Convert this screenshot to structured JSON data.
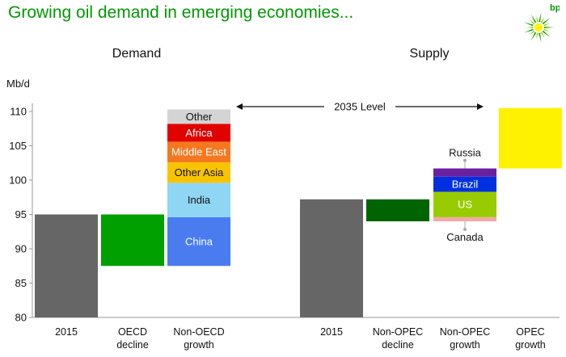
{
  "title": "Growing oil demand in emerging economies...",
  "logo_text": "bp",
  "colors": {
    "title": "#009900",
    "grey": "#666666",
    "green": "#00a000",
    "dark_green": "#006400",
    "china": "#4a7cf0",
    "india": "#8fd6f4",
    "other_asia": "#f8c400",
    "middle_east": "#f47820",
    "africa": "#e00000",
    "other": "#d4d4d4",
    "russia": "#6a1fa0",
    "brazil": "#0030e0",
    "us": "#99cc00",
    "canada": "#f4a8a8",
    "opec": "#fff200"
  },
  "chart_data": {
    "type": "bar",
    "subtype": "waterfall",
    "ylabel": "Mb/d",
    "ylim": [
      80,
      110
    ],
    "yticks": [
      80,
      85,
      90,
      95,
      100,
      105,
      110
    ],
    "grid": false,
    "annotation": "2035 Level",
    "panels": [
      {
        "name": "Demand",
        "bars": [
          {
            "category": "2015",
            "segments": [
              {
                "from": 80,
                "to": 95,
                "color": "grey"
              }
            ]
          },
          {
            "category": "OECD decline",
            "line1": "OECD",
            "line2": "decline",
            "segments": [
              {
                "from": 87.5,
                "to": 95,
                "color": "green"
              }
            ]
          },
          {
            "category": "Non-OECD growth",
            "line1": "Non-OECD",
            "line2": "growth",
            "segments": [
              {
                "label": "China",
                "from": 87.5,
                "to": 94.6,
                "color": "china",
                "text_color": "#ffffff"
              },
              {
                "label": "India",
                "from": 94.6,
                "to": 99.6,
                "color": "india",
                "text_color": "#111111"
              },
              {
                "label": "Other Asia",
                "from": 99.6,
                "to": 102.6,
                "color": "other_asia",
                "text_color": "#111111"
              },
              {
                "label": "Middle East",
                "from": 102.6,
                "to": 105.6,
                "color": "middle_east",
                "text_color": "#ffffff"
              },
              {
                "label": "Africa",
                "from": 105.6,
                "to": 108.2,
                "color": "africa",
                "text_color": "#ffffff"
              },
              {
                "label": "Other",
                "from": 108.2,
                "to": 110.3,
                "color": "other",
                "text_color": "#111111"
              }
            ]
          }
        ]
      },
      {
        "name": "Supply",
        "bars": [
          {
            "category": "2015",
            "segments": [
              {
                "from": 80,
                "to": 97.2,
                "color": "grey"
              }
            ]
          },
          {
            "category": "Non-OPEC decline",
            "line1": "Non-OPEC",
            "line2": "decline",
            "segments": [
              {
                "from": 94,
                "to": 97.2,
                "color": "dark_green"
              }
            ]
          },
          {
            "category": "Non-OPEC growth",
            "line1": "Non-OPEC",
            "line2": "growth",
            "segments": [
              {
                "label": "Canada",
                "from": 94,
                "to": 94.6,
                "color": "canada",
                "text_color": "#111111",
                "callout": "below"
              },
              {
                "label": "US",
                "from": 94.6,
                "to": 98.3,
                "color": "us",
                "text_color": "#ffffff"
              },
              {
                "label": "Brazil",
                "from": 98.3,
                "to": 100.5,
                "color": "brazil",
                "text_color": "#ffffff"
              },
              {
                "label": "Russia",
                "from": 100.5,
                "to": 101.7,
                "color": "russia",
                "text_color": "#111111",
                "callout": "above"
              }
            ]
          },
          {
            "category": "OPEC growth",
            "line1": "OPEC",
            "line2": "growth",
            "segments": [
              {
                "from": 101.7,
                "to": 110.5,
                "color": "opec"
              }
            ]
          }
        ]
      }
    ]
  }
}
